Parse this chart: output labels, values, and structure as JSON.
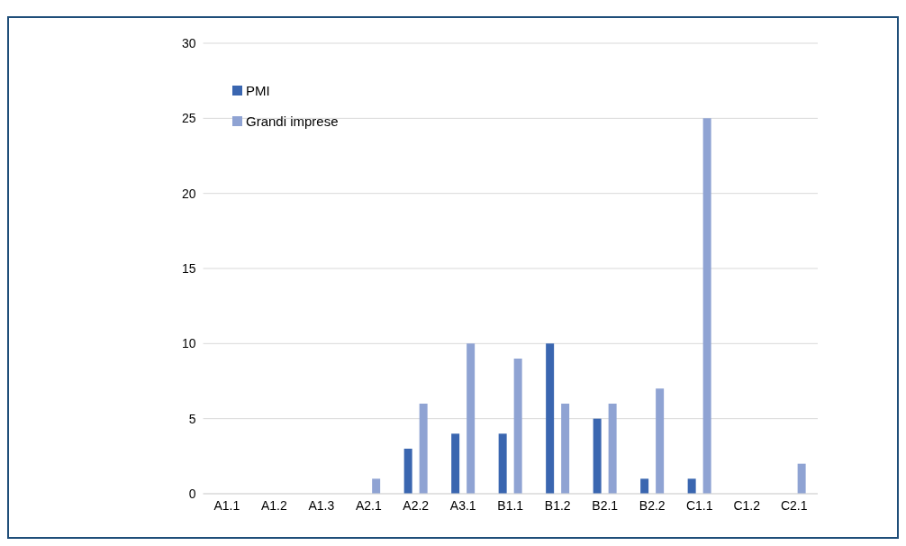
{
  "chart_data": {
    "type": "bar",
    "categories": [
      "A1.1",
      "A1.2",
      "A1.3",
      "A2.1",
      "A2.2",
      "A3.1",
      "B1.1",
      "B1.2",
      "B2.1",
      "B2.2",
      "C1.1",
      "C1.2",
      "C2.1"
    ],
    "series": [
      {
        "name": "PMI",
        "color": "#3a66b0",
        "values": [
          0,
          0,
          0,
          0,
          3,
          4,
          4,
          10,
          5,
          1,
          1,
          0,
          0
        ]
      },
      {
        "name": "Grandi imprese",
        "color": "#8fa3d3",
        "values": [
          0,
          0,
          0,
          1,
          6,
          10,
          9,
          6,
          6,
          7,
          25,
          0,
          2
        ]
      }
    ],
    "ylim": [
      0,
      30
    ],
    "yticks": [
      0,
      5,
      10,
      15,
      20,
      25,
      30
    ],
    "grid": "y",
    "legend": "top left"
  }
}
